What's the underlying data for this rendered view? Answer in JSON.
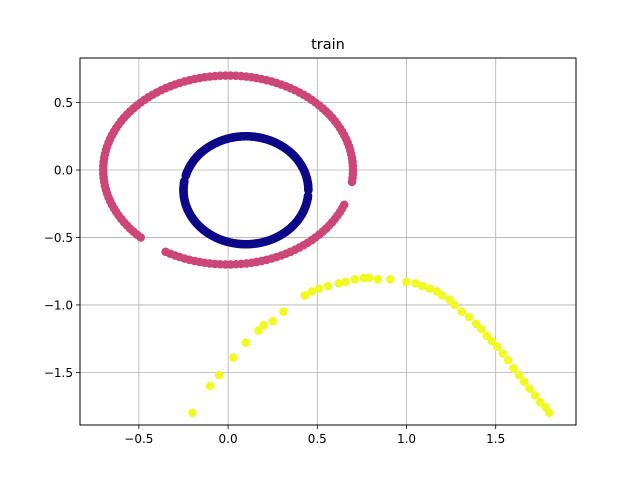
{
  "chart_data": {
    "type": "scatter",
    "title": "train",
    "xlabel": "",
    "ylabel": "",
    "xlim": [
      -0.83,
      1.95
    ],
    "ylim": [
      -1.89,
      0.83
    ],
    "grid": true,
    "xticks": [
      -0.5,
      0.0,
      0.5,
      1.0,
      1.5
    ],
    "xtick_labels": [
      "−0.5",
      "0.0",
      "0.5",
      "1.0",
      "1.5"
    ],
    "yticks": [
      0.5,
      0.0,
      -0.5,
      -1.0,
      -1.5
    ],
    "ytick_labels": [
      "0.5",
      "0.0",
      "−0.5",
      "−1.0",
      "−1.5"
    ],
    "series": [
      {
        "color": "#cc4778",
        "shape": "ellipse",
        "center": [
          0.0,
          0.0
        ],
        "radii": [
          0.7,
          0.7
        ],
        "gaps_degrees": [
          [
            226,
            238
          ],
          [
            340,
            352
          ]
        ],
        "point_count": 150
      },
      {
        "color": "#0d0887",
        "shape": "ellipse",
        "center": [
          0.1,
          -0.15
        ],
        "radii": [
          0.35,
          0.4
        ],
        "gaps_degrees": [
          [
            165,
            170
          ],
          [
            355,
            360
          ]
        ],
        "point_count": 300
      },
      {
        "color": "#f0f921",
        "shape": "points",
        "points": [
          [
            -0.2,
            -1.8
          ],
          [
            -0.1,
            -1.6
          ],
          [
            -0.05,
            -1.52
          ],
          [
            0.03,
            -1.39
          ],
          [
            0.1,
            -1.28
          ],
          [
            0.17,
            -1.19
          ],
          [
            0.2,
            -1.15
          ],
          [
            0.25,
            -1.12
          ],
          [
            0.31,
            -1.05
          ],
          [
            0.43,
            -0.93
          ],
          [
            0.47,
            -0.9
          ],
          [
            0.51,
            -0.88
          ],
          [
            0.56,
            -0.86
          ],
          [
            0.62,
            -0.84
          ],
          [
            0.66,
            -0.83
          ],
          [
            0.71,
            -0.81
          ],
          [
            0.76,
            -0.8
          ],
          [
            0.79,
            -0.8
          ],
          [
            0.84,
            -0.81
          ],
          [
            0.91,
            -0.81
          ],
          [
            1.0,
            -0.83
          ],
          [
            1.05,
            -0.84
          ],
          [
            1.09,
            -0.86
          ],
          [
            1.13,
            -0.88
          ],
          [
            1.17,
            -0.9
          ],
          [
            1.2,
            -0.93
          ],
          [
            1.24,
            -0.96
          ],
          [
            1.27,
            -1.0
          ],
          [
            1.31,
            -1.05
          ],
          [
            1.35,
            -1.09
          ],
          [
            1.39,
            -1.14
          ],
          [
            1.42,
            -1.18
          ],
          [
            1.45,
            -1.23
          ],
          [
            1.48,
            -1.27
          ],
          [
            1.51,
            -1.31
          ],
          [
            1.54,
            -1.36
          ],
          [
            1.57,
            -1.41
          ],
          [
            1.6,
            -1.47
          ],
          [
            1.63,
            -1.52
          ],
          [
            1.66,
            -1.57
          ],
          [
            1.69,
            -1.62
          ],
          [
            1.72,
            -1.67
          ],
          [
            1.75,
            -1.72
          ],
          [
            1.78,
            -1.76
          ],
          [
            1.8,
            -1.8
          ]
        ]
      }
    ]
  }
}
